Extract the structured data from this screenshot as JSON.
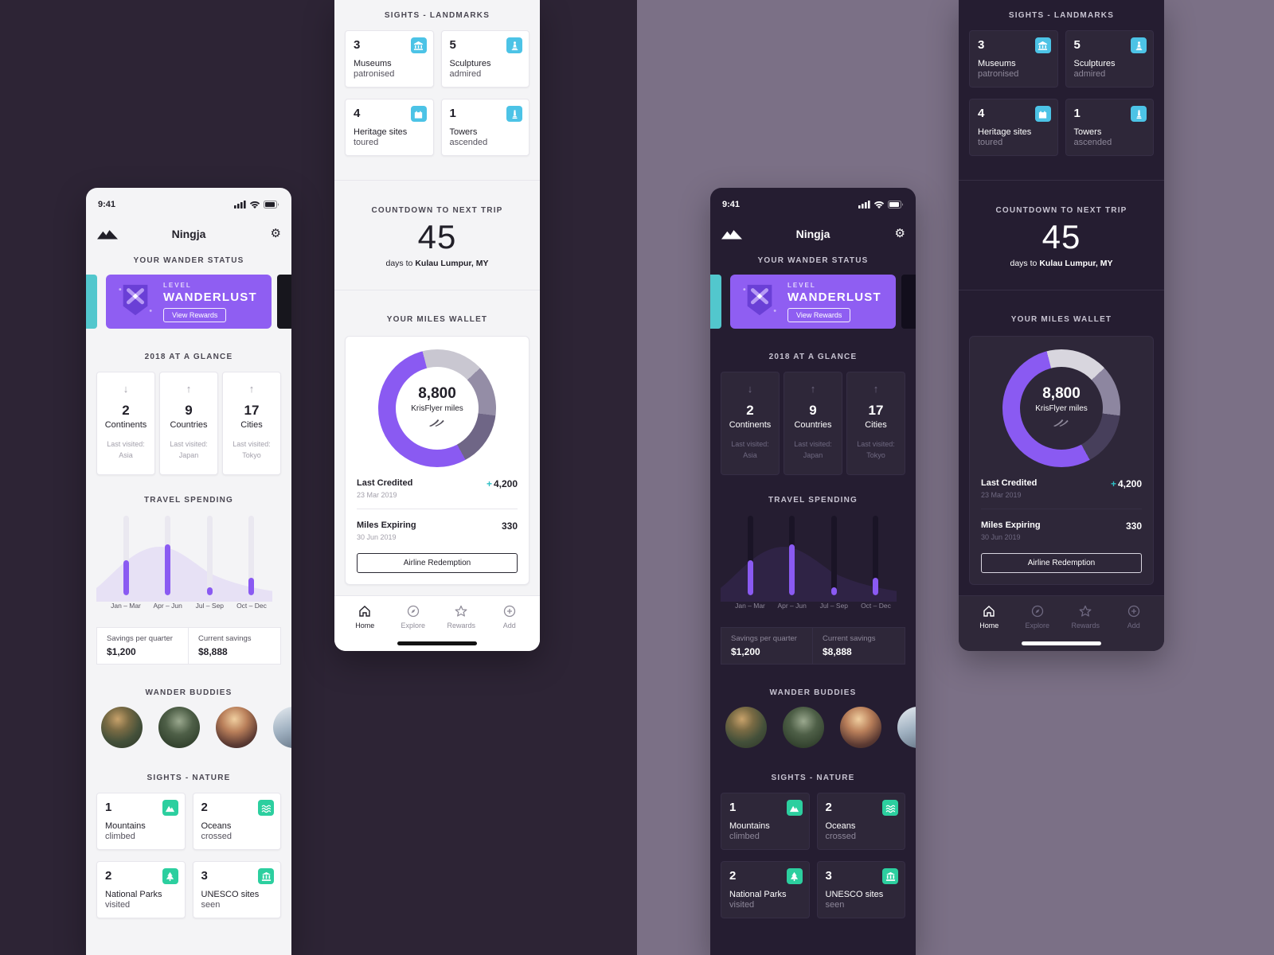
{
  "canvas": {
    "bg_left": "#2d2435",
    "bg_right": "#7b7086"
  },
  "status_bar": {
    "time": "9:41"
  },
  "header": {
    "app_title": "Ningja"
  },
  "icons": {
    "gear": "⚙"
  },
  "sections": {
    "wander_status": "YOUR WANDER STATUS",
    "glance": "2018 AT A GLANCE",
    "spending": "TRAVEL SPENDING",
    "buddies": "WANDER BUDDIES",
    "nature": "SIGHTS - NATURE",
    "landmarks": "SIGHTS - LANDMARKS",
    "countdown": "COUNTDOWN TO NEXT TRIP",
    "wallet": "YOUR MILES WALLET"
  },
  "level_card": {
    "level_label": "LEVEL",
    "level_name": "WANDERLUST",
    "button_label": "View Rewards"
  },
  "glance_cards": [
    {
      "trend": "down",
      "arrow": "↓",
      "value": "2",
      "label": "Continents",
      "last_label": "Last visited:",
      "last_value": "Asia"
    },
    {
      "trend": "up",
      "arrow": "↑",
      "value": "9",
      "label": "Countries",
      "last_label": "Last visited:",
      "last_value": "Japan"
    },
    {
      "trend": "up",
      "arrow": "↑",
      "value": "17",
      "label": "Cities",
      "last_label": "Last visited:",
      "last_value": "Tokyo"
    }
  ],
  "spending_chart": {
    "type": "bar",
    "categories": [
      "Jan – Mar",
      "Apr – Jun",
      "Jul – Sep",
      "Oct – Dec"
    ],
    "fill_percent": [
      44,
      64,
      10,
      22
    ],
    "bar_color": "#8a5af2"
  },
  "savings_cells": [
    {
      "label": "Savings per quarter",
      "value": "$1,200"
    },
    {
      "label": "Current savings",
      "value": "$8,888"
    }
  ],
  "nature_cards": [
    {
      "value": "1",
      "label": "Mountains",
      "sublabel": "climbed",
      "icon": "mountain-icon"
    },
    {
      "value": "2",
      "label": "Oceans",
      "sublabel": "crossed",
      "icon": "waves-icon"
    },
    {
      "value": "2",
      "label": "National Parks",
      "sublabel": "visited",
      "icon": "park-tree-icon"
    },
    {
      "value": "3",
      "label": "UNESCO sites",
      "sublabel": "seen",
      "icon": "temple-icon"
    }
  ],
  "landmark_cards": [
    {
      "value": "3",
      "label": "Museums",
      "sublabel": "patronised",
      "icon": "museum-icon"
    },
    {
      "value": "5",
      "label": "Sculptures",
      "sublabel": "admired",
      "icon": "statue-icon"
    },
    {
      "value": "4",
      "label": "Heritage sites",
      "sublabel": "toured",
      "icon": "heritage-fort-icon"
    },
    {
      "value": "1",
      "label": "Towers",
      "sublabel": "ascended",
      "icon": "tower-icon"
    }
  ],
  "countdown": {
    "days": "45",
    "caption_prefix": "days to",
    "destination": "Kulau Lumpur, MY"
  },
  "wallet": {
    "miles": "8,800",
    "miles_label": "KrisFlyer miles",
    "donut": {
      "type": "pie",
      "segments": [
        {
          "name": "tier-light",
          "color": "var(--d1)",
          "from": 0,
          "to": 13
        },
        {
          "name": "tier-mid",
          "color": "var(--d2)",
          "from": 13,
          "to": 27
        },
        {
          "name": "tier-dark",
          "color": "var(--d3)",
          "from": 27,
          "to": 42
        },
        {
          "name": "miles-purple",
          "color": "#8a5af2",
          "from": 42,
          "to": 96
        },
        {
          "name": "tier-light-wrap",
          "color": "var(--d1)",
          "from": 96,
          "to": 100
        }
      ]
    },
    "last_credited": {
      "label": "Last Credited",
      "date": "23 Mar 2019",
      "plus": "+",
      "amount": "4,200"
    },
    "miles_expiring": {
      "label": "Miles Expiring",
      "date": "30 Jun 2019",
      "amount": "330"
    },
    "redeem_button": "Airline Redemption"
  },
  "tab_bar": {
    "items": [
      {
        "label": "Home",
        "icon": "home-icon",
        "active": true
      },
      {
        "label": "Explore",
        "icon": "compass-icon",
        "active": false
      },
      {
        "label": "Rewards",
        "icon": "star-icon",
        "active": false
      },
      {
        "label": "Add",
        "icon": "add-icon",
        "active": false
      }
    ]
  },
  "accent_colors": {
    "purple": "#8a5af2",
    "level_card_purple": "#8f5ef2",
    "nature_green": "#2ccf9f",
    "landmark_cyan": "#4cc3e6",
    "plus_teal": "#2fbfc4",
    "peek_teal": "#52c7cd"
  }
}
